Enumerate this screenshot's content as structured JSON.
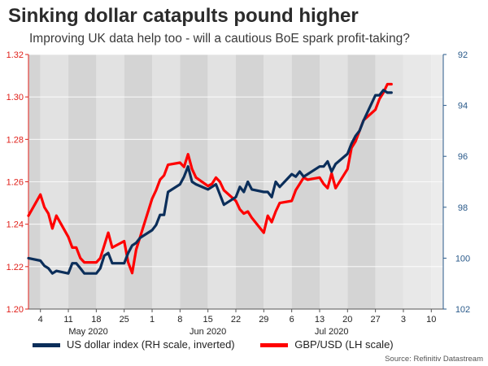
{
  "title": "Sinking dollar catapults pound higher",
  "subtitle": "Improving UK data help too - will a cautious BoE spark profit-taking?",
  "source": "Source: Refinitiv Datastream",
  "colors": {
    "gbp": "#ff0000",
    "dxy": "#0b2e5a",
    "left_axis": "#e0201a",
    "right_axis": "#2a5a8a"
  },
  "chart_data": {
    "type": "line",
    "title": "Sinking dollar catapults pound higher",
    "x_day_ticks": [
      "4",
      "11",
      "18",
      "25",
      "1",
      "8",
      "15",
      "22",
      "29",
      "6",
      "13",
      "20",
      "27",
      "3",
      "10"
    ],
    "x_month_labels": [
      "May 2020",
      "Jun 2020",
      "Jul 2020"
    ],
    "left_axis": {
      "label": "GBP/USD (LH scale)",
      "range": [
        1.2,
        1.32
      ],
      "ticks": [
        "1.20",
        "1.22",
        "1.24",
        "1.26",
        "1.28",
        "1.30",
        "1.32"
      ]
    },
    "right_axis": {
      "label": "US dollar index (RH scale, inverted)",
      "range": [
        102,
        92
      ],
      "inverted": true,
      "ticks": [
        "92",
        "94",
        "96",
        "98",
        "100",
        "102"
      ]
    },
    "x_range": [
      "2020-05-01",
      "2020-08-13"
    ],
    "grid": true,
    "legend_position": "bottom",
    "series": [
      {
        "name": "GBP/USD (LH scale)",
        "axis": "left",
        "x": [
          "2020-05-01",
          "2020-05-04",
          "2020-05-05",
          "2020-05-06",
          "2020-05-07",
          "2020-05-08",
          "2020-05-11",
          "2020-05-12",
          "2020-05-13",
          "2020-05-14",
          "2020-05-15",
          "2020-05-18",
          "2020-05-19",
          "2020-05-20",
          "2020-05-21",
          "2020-05-22",
          "2020-05-25",
          "2020-05-26",
          "2020-05-27",
          "2020-05-28",
          "2020-05-29",
          "2020-06-01",
          "2020-06-02",
          "2020-06-03",
          "2020-06-04",
          "2020-06-05",
          "2020-06-08",
          "2020-06-09",
          "2020-06-10",
          "2020-06-11",
          "2020-06-12",
          "2020-06-15",
          "2020-06-16",
          "2020-06-17",
          "2020-06-18",
          "2020-06-19",
          "2020-06-22",
          "2020-06-23",
          "2020-06-24",
          "2020-06-25",
          "2020-06-26",
          "2020-06-29",
          "2020-06-30",
          "2020-07-01",
          "2020-07-02",
          "2020-07-03",
          "2020-07-06",
          "2020-07-07",
          "2020-07-08",
          "2020-07-09",
          "2020-07-10",
          "2020-07-13",
          "2020-07-14",
          "2020-07-15",
          "2020-07-16",
          "2020-07-17",
          "2020-07-20",
          "2020-07-21",
          "2020-07-22",
          "2020-07-23",
          "2020-07-24",
          "2020-07-27",
          "2020-07-28",
          "2020-07-29",
          "2020-07-30",
          "2020-07-31"
        ],
        "values": [
          1.244,
          1.254,
          1.248,
          1.245,
          1.238,
          1.244,
          1.234,
          1.229,
          1.229,
          1.224,
          1.222,
          1.222,
          1.224,
          1.23,
          1.236,
          1.229,
          1.232,
          1.222,
          1.217,
          1.228,
          1.234,
          1.252,
          1.256,
          1.261,
          1.263,
          1.268,
          1.269,
          1.267,
          1.273,
          1.266,
          1.262,
          1.258,
          1.259,
          1.262,
          1.26,
          1.256,
          1.251,
          1.247,
          1.245,
          1.246,
          1.243,
          1.236,
          1.244,
          1.241,
          1.246,
          1.25,
          1.251,
          1.256,
          1.259,
          1.262,
          1.261,
          1.262,
          1.259,
          1.257,
          1.264,
          1.257,
          1.266,
          1.276,
          1.279,
          1.284,
          1.289,
          1.294,
          1.299,
          1.302,
          1.306,
          1.306
        ]
      },
      {
        "name": "US dollar index (RH scale, inverted)",
        "axis": "right",
        "x": [
          "2020-05-01",
          "2020-05-04",
          "2020-05-05",
          "2020-05-06",
          "2020-05-07",
          "2020-05-08",
          "2020-05-11",
          "2020-05-12",
          "2020-05-13",
          "2020-05-14",
          "2020-05-15",
          "2020-05-18",
          "2020-05-19",
          "2020-05-20",
          "2020-05-21",
          "2020-05-22",
          "2020-05-25",
          "2020-05-26",
          "2020-05-27",
          "2020-05-28",
          "2020-05-29",
          "2020-06-01",
          "2020-06-02",
          "2020-06-03",
          "2020-06-04",
          "2020-06-05",
          "2020-06-08",
          "2020-06-09",
          "2020-06-10",
          "2020-06-11",
          "2020-06-12",
          "2020-06-15",
          "2020-06-16",
          "2020-06-17",
          "2020-06-18",
          "2020-06-19",
          "2020-06-22",
          "2020-06-23",
          "2020-06-24",
          "2020-06-25",
          "2020-06-26",
          "2020-06-29",
          "2020-06-30",
          "2020-07-01",
          "2020-07-02",
          "2020-07-03",
          "2020-07-06",
          "2020-07-07",
          "2020-07-08",
          "2020-07-09",
          "2020-07-10",
          "2020-07-13",
          "2020-07-14",
          "2020-07-15",
          "2020-07-16",
          "2020-07-17",
          "2020-07-20",
          "2020-07-21",
          "2020-07-22",
          "2020-07-23",
          "2020-07-24",
          "2020-07-27",
          "2020-07-28",
          "2020-07-29",
          "2020-07-30",
          "2020-07-31"
        ],
        "values": [
          100.0,
          100.1,
          100.3,
          100.4,
          100.6,
          100.5,
          100.6,
          100.2,
          100.2,
          100.4,
          100.6,
          100.6,
          100.4,
          99.9,
          99.8,
          100.2,
          100.2,
          99.8,
          99.5,
          99.4,
          99.2,
          98.9,
          98.7,
          98.3,
          98.3,
          97.4,
          97.1,
          96.8,
          96.4,
          97.0,
          97.1,
          97.3,
          97.2,
          97.1,
          97.5,
          97.9,
          97.6,
          97.2,
          97.4,
          97.0,
          97.3,
          97.4,
          97.4,
          97.6,
          97.0,
          97.2,
          96.7,
          96.8,
          96.6,
          96.8,
          96.7,
          96.4,
          96.4,
          96.2,
          96.6,
          96.3,
          95.9,
          95.5,
          95.2,
          95.0,
          94.6,
          93.6,
          93.6,
          93.4,
          93.5,
          93.5
        ]
      }
    ]
  }
}
